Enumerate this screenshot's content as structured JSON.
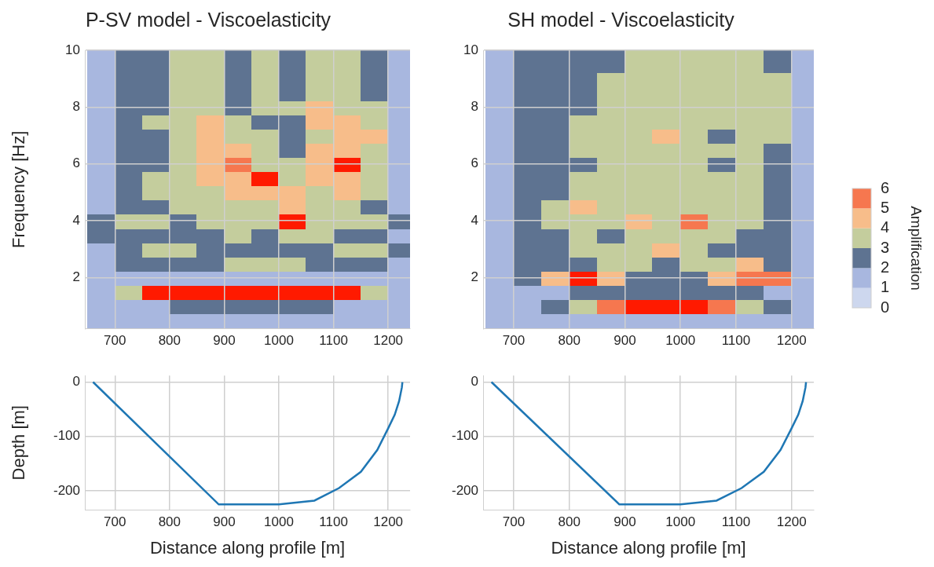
{
  "chart_data": [
    {
      "type": "heatmap",
      "title": "P-SV model - Viscoelasticity",
      "y_label": "Frequency [Hz]",
      "x": [
        675,
        725,
        775,
        825,
        875,
        925,
        975,
        1025,
        1075,
        1125,
        1175,
        1225
      ],
      "y": [
        0.5,
        1.0,
        1.5,
        2.0,
        2.5,
        3.0,
        3.5,
        4.0,
        4.5,
        5.0,
        5.5,
        6.0,
        6.5,
        7.0,
        7.5,
        8.0,
        8.5,
        9.0,
        9.5,
        10.0
      ],
      "cells": [
        [
          1,
          1,
          1,
          1,
          1,
          1,
          1,
          1,
          1,
          1,
          1,
          1
        ],
        [
          1,
          1,
          1.5,
          2,
          2,
          2,
          2,
          2,
          2,
          1.5,
          1,
          1
        ],
        [
          1.5,
          3,
          6.5,
          7,
          7,
          7,
          7,
          7,
          7,
          6.5,
          3.5,
          1.5
        ],
        [
          1,
          1.5,
          1.5,
          1.5,
          1.5,
          1.5,
          1.5,
          1.5,
          1.5,
          1.5,
          1.5,
          1
        ],
        [
          1.5,
          2,
          2.5,
          2.5,
          2.5,
          3.5,
          3.5,
          3.5,
          2.5,
          2.5,
          2,
          1.5
        ],
        [
          1.5,
          2.5,
          3.5,
          3.5,
          2.5,
          2,
          2,
          2,
          2.5,
          3.5,
          3.5,
          2
        ],
        [
          2,
          2.5,
          2,
          2,
          2.5,
          3,
          2.5,
          3.5,
          3,
          2.5,
          2,
          1.5
        ],
        [
          2,
          3.5,
          3.5,
          2.5,
          3.5,
          3,
          3.5,
          6,
          3.5,
          3.5,
          3.5,
          2
        ],
        [
          1.5,
          2,
          2.5,
          3,
          3.5,
          3,
          3,
          4.5,
          3.5,
          3,
          2.5,
          1.5
        ],
        [
          1.5,
          2.5,
          3,
          3,
          3.5,
          4,
          4.5,
          4,
          3.5,
          4,
          3,
          1.5
        ],
        [
          1.5,
          2.5,
          3,
          3,
          4,
          4,
          6,
          3.5,
          4,
          4.5,
          3,
          1.5
        ],
        [
          1.5,
          2,
          2.5,
          3,
          4.5,
          5,
          3,
          3,
          4.5,
          6,
          3.5,
          1.5
        ],
        [
          1.5,
          2,
          2.5,
          3,
          4,
          4,
          3,
          2.5,
          4,
          4.5,
          3.5,
          1.5
        ],
        [
          1.5,
          2,
          2.5,
          3.5,
          4.5,
          3.5,
          3,
          2.5,
          3.5,
          4.5,
          4,
          1.5
        ],
        [
          1.5,
          2,
          3,
          3.5,
          4,
          3,
          2.5,
          2.5,
          4,
          4.5,
          3.5,
          1.5
        ],
        [
          1.5,
          2,
          2.5,
          3.5,
          3,
          2.5,
          3,
          3,
          4,
          3.5,
          3,
          1.5
        ],
        [
          1.5,
          2,
          2.5,
          3,
          3,
          2.5,
          3.5,
          2.5,
          3.5,
          3.5,
          2.5,
          1.5
        ],
        [
          1.5,
          2,
          2.5,
          3.5,
          3,
          2.5,
          3.5,
          2.5,
          3.5,
          3.5,
          2.5,
          1.5
        ],
        [
          1.5,
          2,
          2.5,
          3.5,
          3,
          2.5,
          3,
          2.5,
          3,
          3,
          2.5,
          1.5
        ],
        [
          1.5,
          2,
          2.5,
          3,
          3,
          2.5,
          3,
          2.5,
          3,
          3,
          2.5,
          1.5
        ]
      ],
      "xlim": [
        645,
        1240
      ],
      "xticks": [
        700,
        800,
        900,
        1000,
        1100,
        1200
      ],
      "ylim": [
        0.2,
        10
      ],
      "yticks": [
        2,
        4,
        6,
        8,
        10
      ],
      "grid": true
    },
    {
      "type": "heatmap",
      "title": "SH model - Viscoelasticity",
      "x": [
        675,
        725,
        775,
        825,
        875,
        925,
        975,
        1025,
        1075,
        1125,
        1175,
        1225
      ],
      "y": [
        0.5,
        1.0,
        1.5,
        2.0,
        2.5,
        3.0,
        3.5,
        4.0,
        4.5,
        5.0,
        5.5,
        6.0,
        6.5,
        7.0,
        7.5,
        8.0,
        8.5,
        9.0,
        9.5,
        10.0
      ],
      "cells": [
        [
          1,
          1,
          1,
          1,
          1,
          1,
          1,
          1,
          1,
          1,
          1,
          1
        ],
        [
          1,
          1.5,
          2,
          3.5,
          5,
          6.5,
          6.5,
          6,
          5,
          3.5,
          2,
          1
        ],
        [
          1,
          1.5,
          1.5,
          2,
          2,
          2,
          2,
          2,
          2,
          2,
          1.5,
          1
        ],
        [
          1,
          2,
          4,
          6,
          4,
          2.5,
          2.5,
          2.5,
          4,
          5.5,
          5,
          1.5
        ],
        [
          1.5,
          2,
          2.5,
          2.5,
          3,
          3,
          2.5,
          3,
          3,
          4.5,
          2.5,
          1.5
        ],
        [
          1.5,
          2,
          2.5,
          3,
          3,
          3.5,
          4,
          3,
          2.5,
          2.5,
          2.5,
          1.5
        ],
        [
          1.5,
          2,
          2.5,
          3,
          2.5,
          3,
          3,
          3,
          3,
          2.5,
          2.5,
          1.5
        ],
        [
          1.5,
          2,
          3,
          3,
          3,
          4.5,
          3,
          5.5,
          3,
          3,
          2.5,
          1.5
        ],
        [
          1.5,
          2.5,
          3,
          4,
          3,
          3,
          3,
          3,
          3,
          3,
          2.5,
          1.5
        ],
        [
          1.5,
          2,
          2.5,
          3,
          3,
          3.5,
          3,
          3.5,
          3,
          3.5,
          2.5,
          1.5
        ],
        [
          1.5,
          2,
          2.5,
          3,
          3,
          3,
          3,
          3,
          3,
          3.5,
          2.5,
          1.5
        ],
        [
          1.5,
          2,
          2.5,
          2.5,
          3,
          3,
          3,
          3,
          2.5,
          3,
          2.5,
          1.5
        ],
        [
          1.5,
          2,
          2.5,
          3,
          3,
          3.5,
          3,
          3,
          3,
          3,
          2.5,
          1.5
        ],
        [
          1.5,
          2,
          2.5,
          3,
          3,
          3,
          4,
          3,
          2.5,
          3,
          3,
          1.5
        ],
        [
          1.5,
          2,
          2.5,
          3,
          3,
          3,
          3,
          3,
          3,
          3.5,
          3,
          1.5
        ],
        [
          1.5,
          2,
          2.5,
          2.5,
          3,
          3,
          3,
          3,
          3,
          3.5,
          3,
          1.5
        ],
        [
          1.5,
          2,
          2.5,
          2.5,
          3,
          3,
          3,
          3,
          3,
          3,
          3,
          1.5
        ],
        [
          1.5,
          2,
          2.5,
          2.5,
          3,
          3,
          3,
          3,
          3,
          3,
          3,
          1.5
        ],
        [
          1.5,
          2,
          2.5,
          2.5,
          2.5,
          3,
          3,
          3,
          3,
          3,
          2.5,
          1.5
        ],
        [
          1.5,
          2,
          2.5,
          2.5,
          2.5,
          3,
          3,
          3,
          3,
          3,
          2.5,
          1.5
        ]
      ],
      "xlim": [
        645,
        1240
      ],
      "xticks": [
        700,
        800,
        900,
        1000,
        1100,
        1200
      ],
      "ylim": [
        0.2,
        10
      ],
      "yticks": [
        2,
        4,
        6,
        8,
        10
      ],
      "grid": true
    },
    {
      "type": "line",
      "x_label": "Distance along profile [m]",
      "y_label": "Depth [m]",
      "x": [
        660,
        890,
        1000,
        1065,
        1110,
        1150,
        1180,
        1200,
        1212,
        1220,
        1225,
        1226
      ],
      "series": [
        {
          "color": "#1f77b4",
          "values": [
            0,
            -225,
            -225,
            -218,
            -195,
            -165,
            -125,
            -85,
            -60,
            -35,
            -10,
            0
          ]
        }
      ],
      "xlim": [
        645,
        1240
      ],
      "xticks": [
        700,
        800,
        900,
        1000,
        1100,
        1200
      ],
      "ylim": [
        -235,
        12
      ],
      "yticks": [
        -200,
        -100,
        0
      ],
      "grid": true
    },
    {
      "type": "line",
      "x_label": "Distance along profile [m]",
      "x": [
        660,
        890,
        1000,
        1065,
        1110,
        1150,
        1180,
        1200,
        1212,
        1220,
        1225,
        1226
      ],
      "series": [
        {
          "color": "#1f77b4",
          "values": [
            0,
            -225,
            -225,
            -218,
            -195,
            -165,
            -125,
            -85,
            -60,
            -35,
            -10,
            0
          ]
        }
      ],
      "xlim": [
        645,
        1240
      ],
      "xticks": [
        700,
        800,
        900,
        1000,
        1100,
        1200
      ],
      "ylim": [
        -235,
        12
      ],
      "yticks": [
        -200,
        -100,
        0
      ],
      "grid": true
    },
    {
      "type": "colorbar",
      "title": "Amplification",
      "levels": [
        0,
        1,
        2,
        3,
        4,
        5,
        6
      ],
      "colors": [
        "#cdd7ee",
        "#a8b7df",
        "#5e7391",
        "#c4cd9d",
        "#f7bd8a",
        "#f6774f",
        "#ff1a00"
      ],
      "ylim": [
        0,
        6
      ],
      "yticks": [
        0,
        1,
        2,
        3,
        4,
        5,
        6
      ]
    }
  ]
}
